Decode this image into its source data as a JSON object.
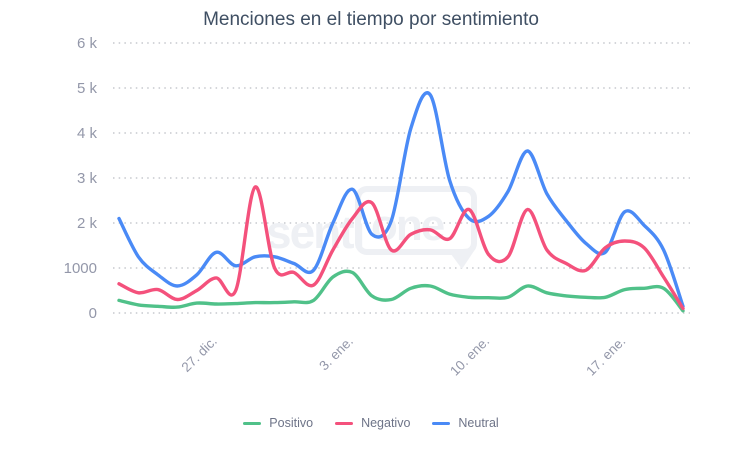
{
  "chart_data": {
    "type": "line",
    "title": "Menciones en el tiempo por sentimiento",
    "xlabel": "",
    "ylabel": "",
    "ylim": [
      0,
      6000
    ],
    "grid": "dotted-horizontal",
    "legend_position": "bottom",
    "watermark": "sentione",
    "y_ticks": [
      {
        "value": 0,
        "label": "0"
      },
      {
        "value": 1000,
        "label": "1000"
      },
      {
        "value": 2000,
        "label": "2 k"
      },
      {
        "value": 3000,
        "label": "3 k"
      },
      {
        "value": 4000,
        "label": "4 k"
      },
      {
        "value": 5000,
        "label": "5 k"
      },
      {
        "value": 6000,
        "label": "6 k"
      }
    ],
    "num_points": 30,
    "x_ticks": [
      {
        "index": 4,
        "label": "27. dic."
      },
      {
        "index": 11,
        "label": "3. ene."
      },
      {
        "index": 18,
        "label": "10. ene."
      },
      {
        "index": 25,
        "label": "17. ene."
      }
    ],
    "series": [
      {
        "name": "Positivo",
        "color": "#50c189",
        "values": [
          280,
          180,
          150,
          130,
          220,
          200,
          210,
          230,
          230,
          250,
          280,
          800,
          900,
          380,
          300,
          550,
          600,
          420,
          350,
          340,
          350,
          600,
          450,
          380,
          350,
          350,
          520,
          550,
          550,
          50
        ]
      },
      {
        "name": "Negativo",
        "color": "#f4517c",
        "values": [
          650,
          450,
          520,
          300,
          500,
          780,
          500,
          2800,
          1000,
          900,
          620,
          1400,
          2100,
          2450,
          1400,
          1750,
          1850,
          1650,
          2300,
          1300,
          1250,
          2300,
          1400,
          1100,
          950,
          1450,
          1600,
          1450,
          800,
          100
        ]
      },
      {
        "name": "Neutral",
        "color": "#4a8af6",
        "values": [
          2100,
          1250,
          850,
          600,
          850,
          1350,
          1050,
          1250,
          1250,
          1100,
          950,
          2000,
          2750,
          1750,
          2050,
          4100,
          4850,
          2950,
          2100,
          2150,
          2700,
          3600,
          2650,
          2050,
          1550,
          1350,
          2250,
          1950,
          1400,
          150
        ]
      }
    ],
    "draw_order": [
      0,
      2,
      1
    ]
  },
  "theme": {
    "background": "#ffffff",
    "title_color": "#3f4f63",
    "axis_label_color": "#9397a9",
    "grid_color": "#c6c8cd",
    "legend_text_color": "#6e7488",
    "watermark_color": "#eef0f4"
  }
}
